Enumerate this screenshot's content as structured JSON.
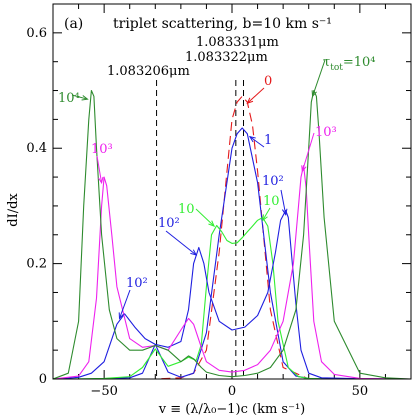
{
  "chart_data": {
    "type": "line",
    "panel_label": "(a)",
    "title": "triplet scattering, b=10 km s⁻¹",
    "xlabel": "v ≡ (λ/λ₀−1)c  (km s⁻¹)",
    "ylabel": "dI/dx",
    "xlim": [
      -70,
      70
    ],
    "ylim": [
      0,
      0.65
    ],
    "xticks_major": [
      -50,
      0,
      50
    ],
    "xticks_minor_step": 10,
    "yticks_major": [
      0,
      0.2,
      0.4,
      0.6
    ],
    "yticks_major_labels": [
      "0",
      "0.2",
      "0.4",
      "0.6"
    ],
    "yticks_minor_step": 0.05,
    "grid": false,
    "legend": "none (curves labeled inline)",
    "reference_lines": [
      {
        "x": -29.5,
        "label": "1.083206μm"
      },
      {
        "x": 1.5,
        "label": "1.083322μm"
      },
      {
        "x": 4.5,
        "label": "1.083331μm"
      }
    ],
    "series": [
      {
        "name": "0",
        "color": "#e41a1c",
        "dashed": true,
        "x": [
          -55,
          -40,
          -30,
          -20,
          -15,
          -10,
          -5,
          0,
          2,
          4,
          6,
          8,
          10,
          15,
          20,
          30,
          50
        ],
        "y": [
          0,
          0,
          0,
          0.002,
          0.01,
          0.05,
          0.22,
          0.45,
          0.48,
          0.49,
          0.48,
          0.44,
          0.36,
          0.12,
          0.02,
          0,
          0
        ]
      },
      {
        "name": "1",
        "color": "#1f1fe0",
        "dashed": false,
        "x": [
          -55,
          -40,
          -35,
          -30,
          -25,
          -20,
          -15,
          -10,
          -5,
          0,
          2,
          4,
          6,
          10,
          15,
          20,
          25,
          30,
          40,
          50
        ],
        "y": [
          0,
          0.002,
          0.01,
          0.06,
          0.012,
          0.003,
          0.01,
          0.08,
          0.25,
          0.4,
          0.425,
          0.435,
          0.425,
          0.34,
          0.15,
          0.03,
          0.005,
          0.001,
          0,
          0
        ]
      },
      {
        "name": "10",
        "color": "#33ee33",
        "dashed": false,
        "x": [
          -65,
          -50,
          -40,
          -35,
          -30,
          -25,
          -20,
          -17,
          -14,
          -12,
          -10,
          -8,
          -6,
          -4,
          -2,
          0,
          2,
          4,
          6,
          8,
          10,
          12,
          14,
          16,
          18,
          22,
          26,
          30,
          40,
          55,
          70
        ],
        "y": [
          0,
          0.001,
          0.004,
          0.02,
          0.052,
          0.022,
          0.03,
          0.038,
          0.032,
          0.06,
          0.16,
          0.25,
          0.266,
          0.255,
          0.24,
          0.235,
          0.236,
          0.245,
          0.255,
          0.265,
          0.275,
          0.28,
          0.265,
          0.2,
          0.1,
          0.02,
          0.004,
          0.001,
          0,
          0,
          0
        ]
      },
      {
        "name": "10²",
        "color": "#1f1fe0",
        "dashed": false,
        "x": [
          -68,
          -60,
          -55,
          -50,
          -45,
          -42,
          -38,
          -34,
          -30,
          -25,
          -20,
          -17,
          -15,
          -13,
          -11,
          -9,
          -5,
          0,
          5,
          10,
          14,
          17,
          19,
          21,
          22,
          23,
          25,
          27,
          30,
          35,
          45,
          60,
          70
        ],
        "y": [
          0,
          0.003,
          0.01,
          0.03,
          0.095,
          0.113,
          0.09,
          0.07,
          0.06,
          0.055,
          0.065,
          0.12,
          0.2,
          0.228,
          0.2,
          0.15,
          0.1,
          0.085,
          0.09,
          0.11,
          0.15,
          0.22,
          0.275,
          0.292,
          0.28,
          0.23,
          0.13,
          0.05,
          0.01,
          0.002,
          0.001,
          0,
          0
        ]
      },
      {
        "name": "10³",
        "color": "#ee22ee",
        "dashed": false,
        "x": [
          -70,
          -60,
          -56,
          -53,
          -51,
          -50,
          -49,
          -47,
          -45,
          -40,
          -35,
          -30,
          -25,
          -20,
          -17,
          -15,
          -12,
          -10,
          -5,
          0,
          5,
          10,
          15,
          20,
          24,
          26,
          27,
          28,
          29,
          30,
          32,
          35,
          40,
          50,
          70
        ],
        "y": [
          0,
          0.005,
          0.03,
          0.14,
          0.3,
          0.35,
          0.335,
          0.25,
          0.16,
          0.07,
          0.055,
          0.058,
          0.05,
          0.085,
          0.105,
          0.095,
          0.055,
          0.03,
          0.015,
          0.012,
          0.015,
          0.025,
          0.05,
          0.1,
          0.2,
          0.3,
          0.35,
          0.37,
          0.33,
          0.25,
          0.1,
          0.03,
          0.008,
          0.001,
          0
        ]
      },
      {
        "name": "10⁴",
        "color": "#2e8b2e",
        "dashed": false,
        "x": [
          -70,
          -64,
          -60,
          -58,
          -56,
          -55,
          -54,
          -53,
          -51,
          -48,
          -45,
          -40,
          -35,
          -30,
          -25,
          -20,
          -17,
          -15,
          -12,
          -10,
          -5,
          0,
          5,
          10,
          15,
          20,
          25,
          28,
          30,
          31,
          32,
          33,
          34,
          36,
          40,
          50,
          60,
          70
        ],
        "y": [
          0,
          0.01,
          0.1,
          0.3,
          0.45,
          0.5,
          0.49,
          0.4,
          0.25,
          0.12,
          0.07,
          0.05,
          0.05,
          0.058,
          0.05,
          0.03,
          0.04,
          0.035,
          0.02,
          0.012,
          0.006,
          0.004,
          0.006,
          0.01,
          0.02,
          0.05,
          0.12,
          0.25,
          0.4,
          0.48,
          0.5,
          0.49,
          0.43,
          0.28,
          0.1,
          0.01,
          0.002,
          0
        ]
      }
    ],
    "annotations": [
      {
        "text": "τ",
        "sub": "tot",
        "suffix": "=10⁴",
        "color": "#2e8b2e"
      },
      {
        "text": "0",
        "color": "#e41a1c"
      },
      {
        "text": "1",
        "color": "#1f1fe0"
      },
      {
        "text": "10⁴",
        "color": "#2e8b2e"
      },
      {
        "text": "10³",
        "color": "#ee22ee"
      },
      {
        "text": "10³",
        "color": "#ee22ee"
      },
      {
        "text": "10²",
        "color": "#1f1fe0"
      },
      {
        "text": "10²",
        "color": "#1f1fe0"
      },
      {
        "text": "10²",
        "color": "#1f1fe0"
      },
      {
        "text": "10",
        "color": "#33ee33"
      },
      {
        "text": "10",
        "color": "#33ee33"
      }
    ]
  }
}
